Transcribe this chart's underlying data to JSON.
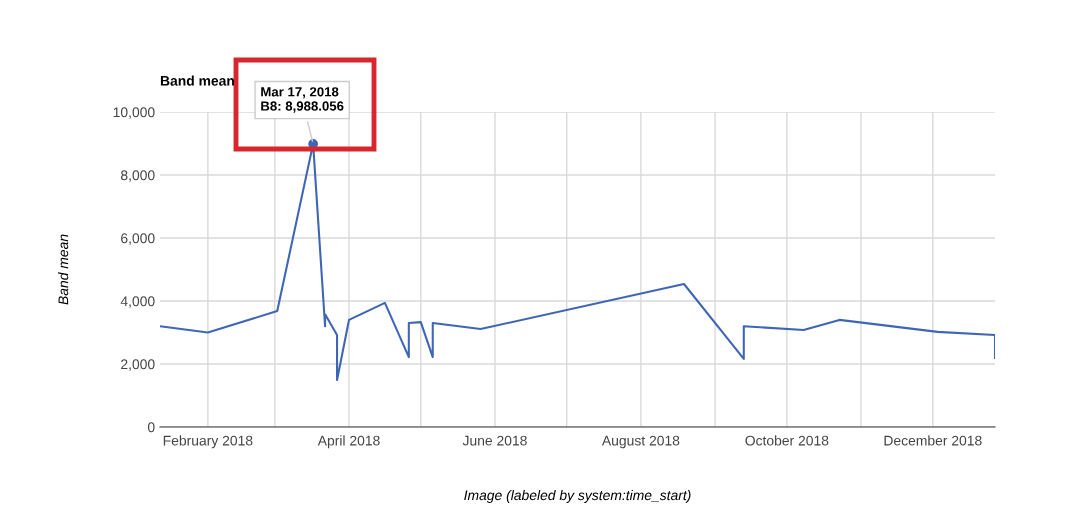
{
  "chart_data": {
    "type": "line",
    "title": "Band mean",
    "xlabel": "Image (labeled by system:time_start)",
    "ylabel": "Band mean",
    "x": [
      "2018-01-12",
      "2018-02-01",
      "2018-03-02",
      "2018-03-17",
      "2018-03-22",
      "2018-03-22",
      "2018-03-27",
      "2018-03-27",
      "2018-04-01",
      "2018-04-16",
      "2018-04-26",
      "2018-04-26",
      "2018-05-01",
      "2018-05-06",
      "2018-05-06",
      "2018-05-26",
      "2018-08-19",
      "2018-09-13",
      "2018-09-13",
      "2018-10-08",
      "2018-10-23",
      "2018-12-03",
      "2018-12-27",
      "2018-12-27"
    ],
    "series": [
      {
        "color": "#3f66b5",
        "values": [
          3200,
          3000,
          3680,
          8988.056,
          3200,
          3580,
          2920,
          1490,
          3400,
          3940,
          2220,
          3300,
          3330,
          2220,
          3300,
          3110,
          4540,
          2160,
          3200,
          3080,
          3400,
          3020,
          2920,
          2190
        ]
      }
    ],
    "xlim": [
      "2018-01-12",
      "2018-12-27"
    ],
    "xticks": [
      {
        "value": "2018-02-01",
        "label": "February 2018"
      },
      {
        "value": "2018-03-01",
        "label": null
      },
      {
        "value": "2018-04-01",
        "label": "April 2018"
      },
      {
        "value": "2018-05-01",
        "label": null
      },
      {
        "value": "2018-06-01",
        "label": "June 2018"
      },
      {
        "value": "2018-07-01",
        "label": null
      },
      {
        "value": "2018-08-01",
        "label": "August 2018"
      },
      {
        "value": "2018-09-01",
        "label": null
      },
      {
        "value": "2018-10-01",
        "label": "October 2018"
      },
      {
        "value": "2018-11-01",
        "label": null
      },
      {
        "value": "2018-12-01",
        "label": "December 2018"
      }
    ],
    "ylim": [
      0,
      10000
    ],
    "yticks": [
      {
        "value": 0,
        "label": "0"
      },
      {
        "value": 2000,
        "label": "2,000"
      },
      {
        "value": 4000,
        "label": "4,000"
      },
      {
        "value": 6000,
        "label": "6,000"
      },
      {
        "value": 8000,
        "label": "8,000"
      },
      {
        "value": 10000,
        "label": "10,000"
      }
    ],
    "grid": true,
    "legend": false,
    "marker": "none",
    "line_style": "solid",
    "annotations": [
      {
        "text": "Mar 17, 2018\nB8: 8,988.056",
        "x": "2018-03-17",
        "y": 8988.056
      }
    ]
  }
}
